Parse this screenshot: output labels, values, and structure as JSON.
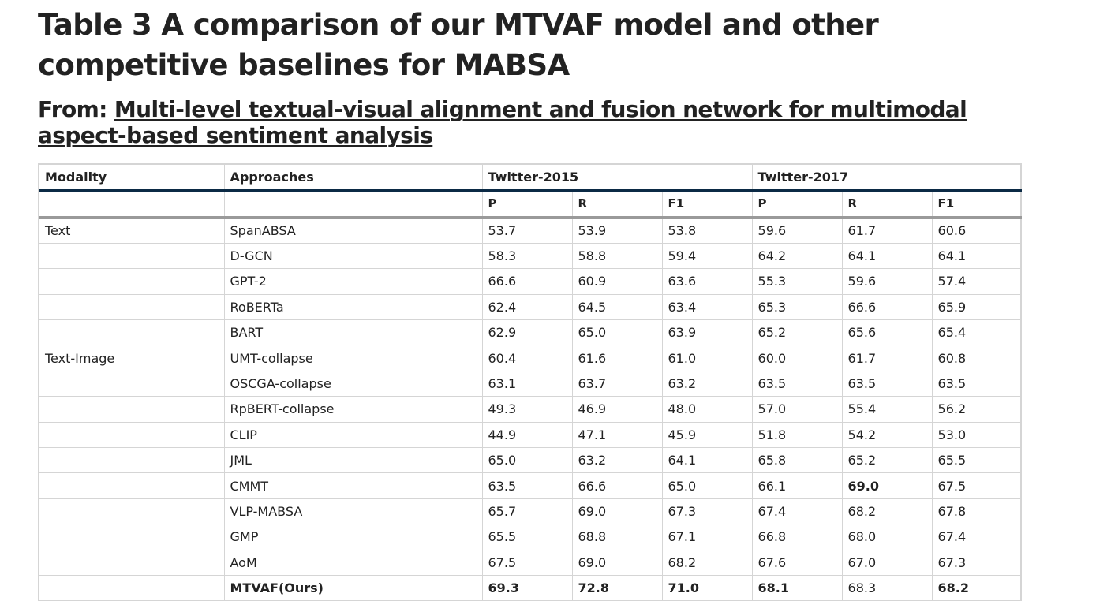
{
  "title": "Table 3 A comparison of our MTVAF model and other competitive baselines for MABSA",
  "from": {
    "prefix": "From:",
    "link_text": "Multi-level textual-visual alignment and fusion network for multimodal aspect-based sentiment analysis"
  },
  "table": {
    "header_row1": [
      "Modality",
      "Approaches",
      "Twitter-2015",
      "Twitter-2017"
    ],
    "header_row2": [
      "",
      "",
      "P",
      "R",
      "F1",
      "P",
      "R",
      "F1"
    ],
    "rows": [
      {
        "modality": "Text",
        "approach": "SpanABSA",
        "values": [
          "53.7",
          "53.9",
          "53.8",
          "59.6",
          "61.7",
          "60.6"
        ]
      },
      {
        "modality": "",
        "approach": "D-GCN",
        "values": [
          "58.3",
          "58.8",
          "59.4",
          "64.2",
          "64.1",
          "64.1"
        ]
      },
      {
        "modality": "",
        "approach": "GPT-2",
        "values": [
          "66.6",
          "60.9",
          "63.6",
          "55.3",
          "59.6",
          "57.4"
        ]
      },
      {
        "modality": "",
        "approach": "RoBERTa",
        "values": [
          "62.4",
          "64.5",
          "63.4",
          "65.3",
          "66.6",
          "65.9"
        ]
      },
      {
        "modality": "",
        "approach": "BART",
        "values": [
          "62.9",
          "65.0",
          "63.9",
          "65.2",
          "65.6",
          "65.4"
        ]
      },
      {
        "modality": "Text-Image",
        "approach": "UMT-collapse",
        "values": [
          "60.4",
          "61.6",
          "61.0",
          "60.0",
          "61.7",
          "60.8"
        ]
      },
      {
        "modality": "",
        "approach": "OSCGA-collapse",
        "values": [
          "63.1",
          "63.7",
          "63.2",
          "63.5",
          "63.5",
          "63.5"
        ]
      },
      {
        "modality": "",
        "approach": "RpBERT-collapse",
        "values": [
          "49.3",
          "46.9",
          "48.0",
          "57.0",
          "55.4",
          "56.2"
        ]
      },
      {
        "modality": "",
        "approach": "CLIP",
        "values": [
          "44.9",
          "47.1",
          "45.9",
          "51.8",
          "54.2",
          "53.0"
        ]
      },
      {
        "modality": "",
        "approach": "JML",
        "values": [
          "65.0",
          "63.2",
          "64.1",
          "65.8",
          "65.2",
          "65.5"
        ]
      },
      {
        "modality": "",
        "approach": "CMMT",
        "values": [
          "63.5",
          "66.6",
          "65.0",
          "66.1",
          "69.0",
          "67.5"
        ],
        "bold": [
          4
        ]
      },
      {
        "modality": "",
        "approach": "VLP-MABSA",
        "values": [
          "65.7",
          "69.0",
          "67.3",
          "67.4",
          "68.2",
          "67.8"
        ]
      },
      {
        "modality": "",
        "approach": "GMP",
        "values": [
          "65.5",
          "68.8",
          "67.1",
          "66.8",
          "68.0",
          "67.4"
        ]
      },
      {
        "modality": "",
        "approach": "AoM",
        "values": [
          "67.5",
          "69.0",
          "68.2",
          "67.6",
          "67.0",
          "67.3"
        ]
      },
      {
        "modality": "",
        "approach": "MTVAF(Ours)",
        "values": [
          "69.3",
          "72.8",
          "71.0",
          "68.1",
          "68.3",
          "68.2"
        ],
        "bold_approach": true,
        "bold": [
          0,
          1,
          2,
          3,
          5
        ]
      }
    ]
  }
}
